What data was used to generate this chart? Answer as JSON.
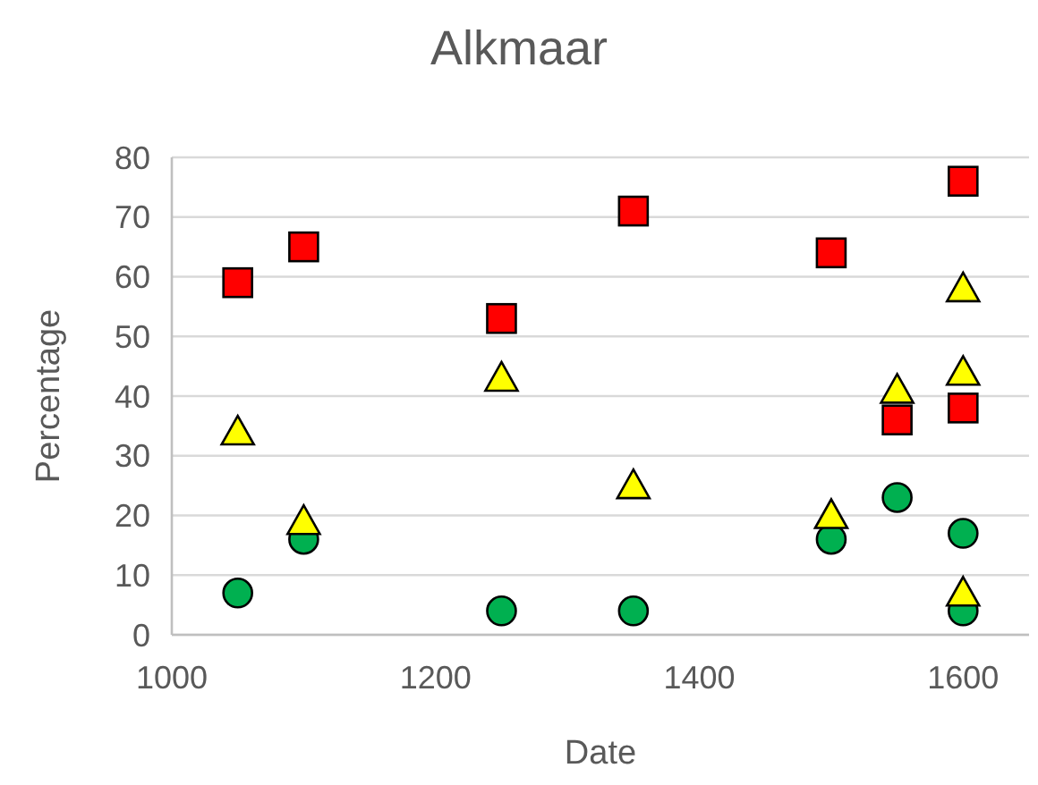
{
  "chart_data": {
    "type": "scatter",
    "title": "Alkmaar",
    "xlabel": "Date",
    "ylabel": "Percentage",
    "xlim": [
      1000,
      1650
    ],
    "xticks": [
      1000,
      1200,
      1400,
      1600
    ],
    "ylim": [
      0,
      80
    ],
    "yticks": [
      0,
      10,
      20,
      30,
      40,
      50,
      60,
      70,
      80
    ],
    "grid": "y",
    "series": [
      {
        "color": "#00b050",
        "marker": "circle",
        "x": [
          1050,
          1100,
          1250,
          1350,
          1500,
          1550,
          1600,
          1600
        ],
        "values": [
          7,
          16,
          4,
          4,
          16,
          23,
          17,
          4
        ]
      },
      {
        "color": "#ffff00",
        "marker": "triangle",
        "x": [
          1050,
          1100,
          1250,
          1350,
          1500,
          1550,
          1600,
          1600,
          1600
        ],
        "values": [
          34,
          19,
          43,
          25,
          20,
          41,
          58,
          44,
          7
        ]
      },
      {
        "color": "#ff0000",
        "marker": "square",
        "x": [
          1050,
          1100,
          1250,
          1350,
          1500,
          1550,
          1600,
          1600
        ],
        "values": [
          59,
          65,
          53,
          71,
          64,
          36,
          76,
          38
        ]
      }
    ]
  }
}
